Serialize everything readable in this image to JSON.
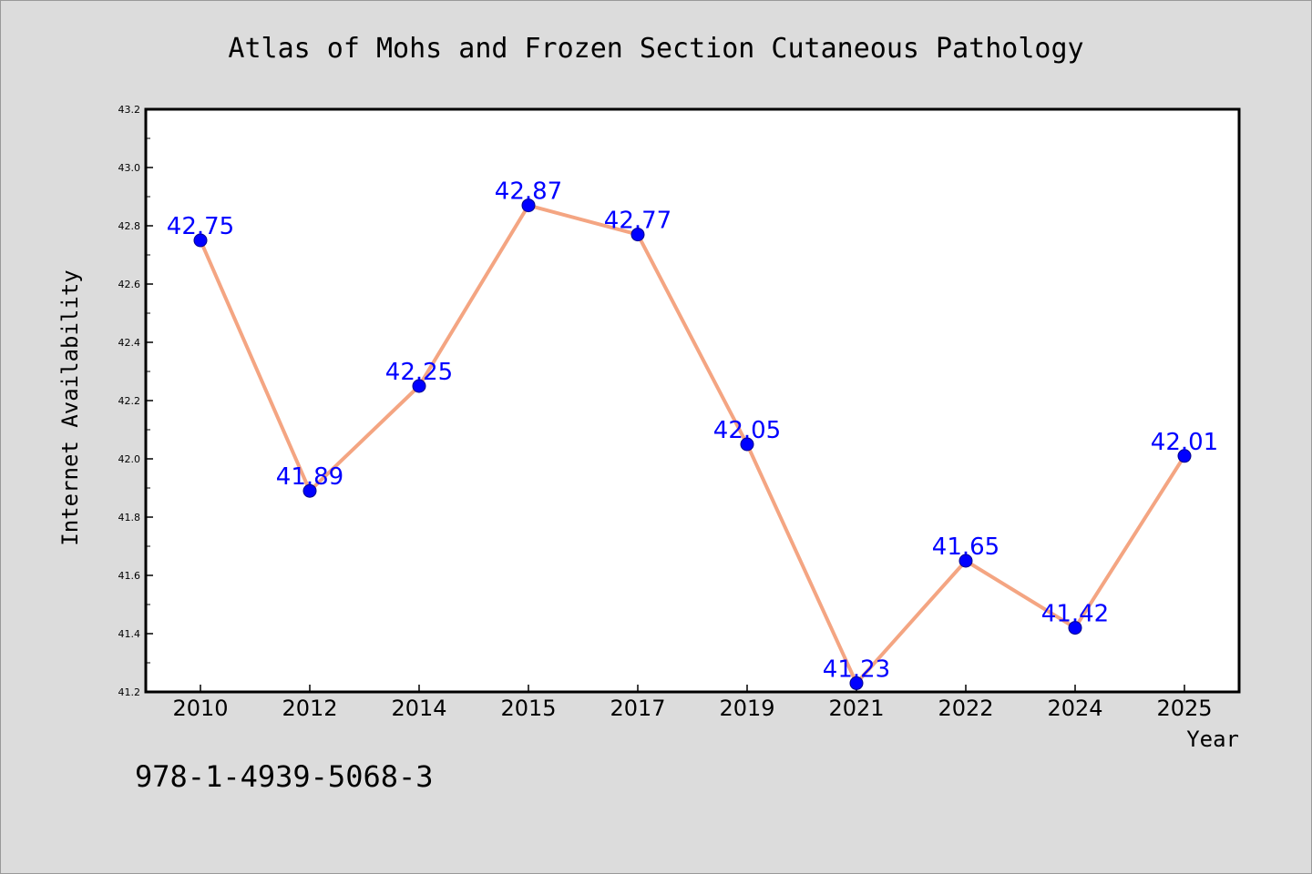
{
  "chart_data": {
    "type": "line",
    "title": "Atlas of Mohs and Frozen Section Cutaneous Pathology",
    "xlabel": "Year",
    "ylabel": "Internet Availability",
    "categories": [
      "2010",
      "2012",
      "2014",
      "2015",
      "2017",
      "2019",
      "2021",
      "2022",
      "2024",
      "2025"
    ],
    "series": [
      {
        "values": [
          42.75,
          41.89,
          42.25,
          42.87,
          42.77,
          42.05,
          41.23,
          41.65,
          41.42,
          42.01
        ],
        "labels": [
          "42.75",
          "41.89",
          "42.25",
          "42.87",
          "42.77",
          "42.05",
          "41.23",
          "41.65",
          "41.42",
          "42.01"
        ]
      }
    ],
    "ylim": [
      41.2,
      43.2
    ],
    "yticks": [
      "41.2",
      "41.4",
      "41.6",
      "41.8",
      "42.0",
      "42.2",
      "42.4",
      "42.6",
      "42.8",
      "43.0",
      "43.2"
    ],
    "grid": false,
    "line_color": "#f4a582",
    "marker_color": "#0000ff",
    "label_color": "#0000ff"
  },
  "footer": {
    "isbn": "978-1-4939-5068-3"
  }
}
